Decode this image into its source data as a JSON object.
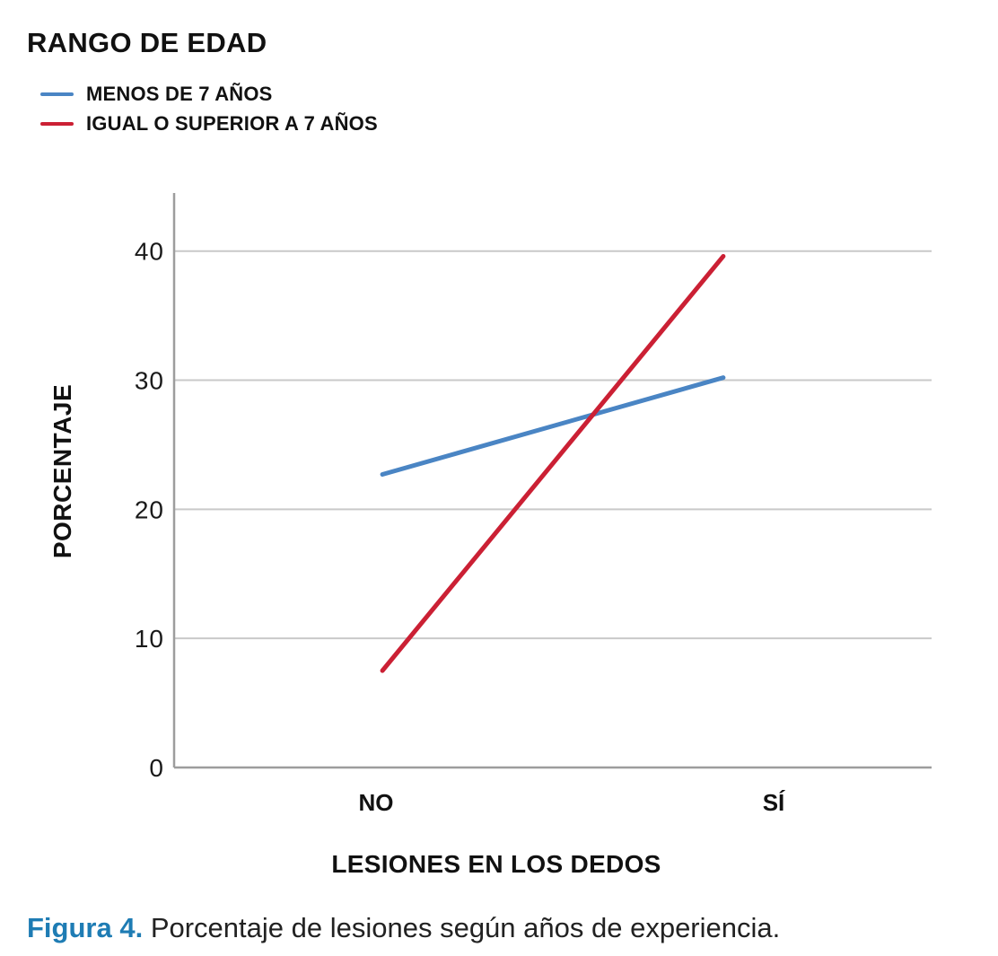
{
  "legend": {
    "title": "RANGO DE EDAD"
  },
  "axes": {
    "y_title": "PORCENTAJE",
    "x_title": "LESIONES EN LOS DEDOS"
  },
  "caption": {
    "prefix": "Figura 4.",
    "text": " Porcentaje de lesiones según años de experiencia."
  },
  "colors": {
    "series_blue": "#4a85c4",
    "series_red": "#cb2034",
    "caption_accent": "#1e7cb4",
    "axis": "#9d9d9d",
    "gridline": "#c9c9c9",
    "tick_text": "#1a1a1a",
    "label_text": "#111111"
  },
  "chart_data": {
    "type": "line",
    "title": "RANGO DE EDAD",
    "xlabel": "LESIONES EN LOS DEDOS",
    "ylabel": "PORCENTAJE",
    "categories": [
      "NO",
      "SÍ"
    ],
    "series": [
      {
        "name": "MENOS DE 7 AÑOS",
        "color": "#4a85c4",
        "values": [
          22.7,
          30.2
        ]
      },
      {
        "name": "IGUAL O SUPERIOR A 7 AÑOS",
        "color": "#cb2034",
        "values": [
          7.5,
          39.6
        ]
      }
    ],
    "ylim": [
      0,
      44.5
    ],
    "yticks": [
      0,
      10,
      20,
      30,
      40
    ],
    "grid": true,
    "legend_position": "top-left"
  }
}
